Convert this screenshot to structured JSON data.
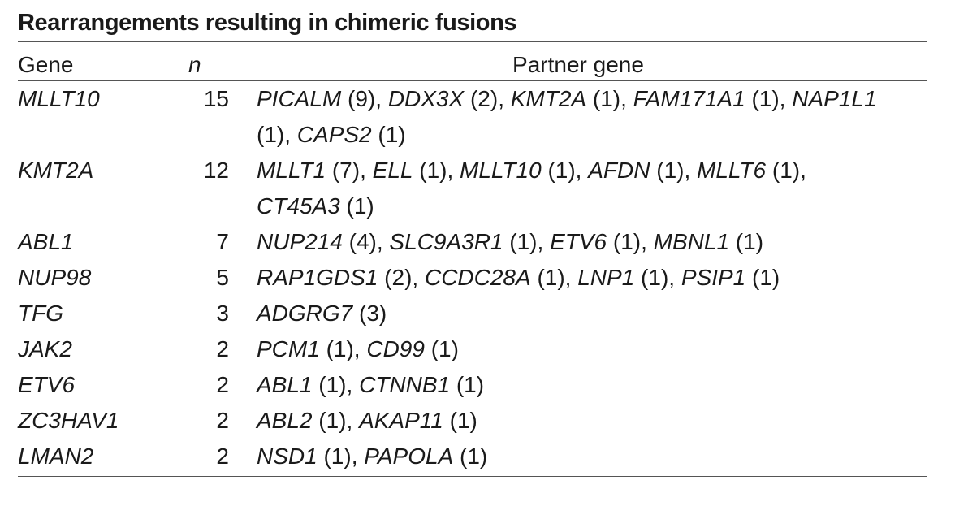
{
  "title": "Rearrangements resulting in chimeric fusions",
  "headers": {
    "gene": "Gene",
    "n": "n",
    "partner": "Partner gene"
  },
  "rows": [
    {
      "gene": "MLLT10",
      "n": "15",
      "partners": [
        {
          "name": "PICALM",
          "count": "(9)"
        },
        {
          "name": "DDX3X",
          "count": "(2)"
        },
        {
          "name": "KMT2A",
          "count": "(1)"
        },
        {
          "name": "FAM171A1",
          "count": "(1)"
        },
        {
          "name": "NAP1L1",
          "count": "(1)"
        },
        {
          "name": "CAPS2",
          "count": "(1)"
        }
      ]
    },
    {
      "gene": "KMT2A",
      "n": "12",
      "partners": [
        {
          "name": "MLLT1",
          "count": "(7)"
        },
        {
          "name": "ELL",
          "count": "(1)"
        },
        {
          "name": "MLLT10",
          "count": "(1)"
        },
        {
          "name": "AFDN",
          "count": "(1)"
        },
        {
          "name": "MLLT6",
          "count": "(1)"
        },
        {
          "name": "CT45A3",
          "count": "(1)"
        }
      ]
    },
    {
      "gene": "ABL1",
      "n": "7",
      "partners": [
        {
          "name": "NUP214",
          "count": "(4)"
        },
        {
          "name": "SLC9A3R1",
          "count": "(1)"
        },
        {
          "name": "ETV6",
          "count": "(1)"
        },
        {
          "name": "MBNL1",
          "count": "(1)"
        }
      ]
    },
    {
      "gene": "NUP98",
      "n": "5",
      "partners": [
        {
          "name": "RAP1GDS1",
          "count": "(2)"
        },
        {
          "name": "CCDC28A",
          "count": "(1)"
        },
        {
          "name": "LNP1",
          "count": "(1)"
        },
        {
          "name": "PSIP1",
          "count": "(1)"
        }
      ]
    },
    {
      "gene": "TFG",
      "n": "3",
      "partners": [
        {
          "name": "ADGRG7",
          "count": "(3)"
        }
      ]
    },
    {
      "gene": "JAK2",
      "n": "2",
      "partners": [
        {
          "name": "PCM1",
          "count": "(1)"
        },
        {
          "name": "CD99",
          "count": "(1)"
        }
      ]
    },
    {
      "gene": "ETV6",
      "n": "2",
      "partners": [
        {
          "name": "ABL1",
          "count": "(1)"
        },
        {
          "name": "CTNNB1",
          "count": "(1)"
        }
      ]
    },
    {
      "gene": "ZC3HAV1",
      "n": "2",
      "partners": [
        {
          "name": "ABL2",
          "count": "(1)"
        },
        {
          "name": "AKAP11",
          "count": "(1)"
        }
      ]
    },
    {
      "gene": "LMAN2",
      "n": "2",
      "partners": [
        {
          "name": "NSD1",
          "count": "(1)"
        },
        {
          "name": "PAPOLA",
          "count": "(1)"
        }
      ]
    }
  ]
}
